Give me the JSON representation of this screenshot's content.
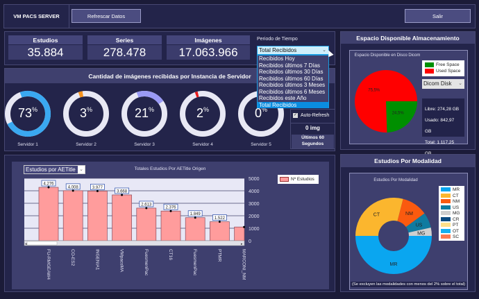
{
  "header": {
    "title": "VM PACS SERVER",
    "refresh_label": "Refrescar Datos",
    "exit_label": "Salir"
  },
  "stats": [
    {
      "label": "Estudios",
      "value": "35.884"
    },
    {
      "label": "Series",
      "value": "278.478"
    },
    {
      "label": "Imágenes",
      "value": "17.063.966"
    }
  ],
  "period": {
    "label": "Periodo de Tiempo",
    "selected": "Total Recibidos",
    "options": [
      "Recibidos Hoy",
      "Recibidos últimos 7 Días",
      "Recibidos últimos 30 Días",
      "Recibidos últimos 60 Días",
      "Recibidos últimos 3 Meses",
      "Recibidos últimos 6 Meses",
      "Recibidos este Año",
      "Total Recibidos"
    ]
  },
  "servers": {
    "title": "Cantidad de imágenes recibidas por Instancia de Servidor",
    "items": [
      {
        "name": "Servidor 1",
        "percent": 73,
        "color": "#3aa8f0"
      },
      {
        "name": "Servidor 2",
        "percent": 3,
        "color": "#f7931e"
      },
      {
        "name": "Servidor 3",
        "percent": 21,
        "color": "#9a9af5"
      },
      {
        "name": "Servidor 4",
        "percent": 2,
        "color": "#e81c1c"
      },
      {
        "name": "Servidor 5",
        "percent": 0,
        "color": "#3aa8f0"
      }
    ],
    "percent_sign": "%",
    "auto_refresh_label": "Auto-Refresh",
    "auto_refresh_checked": true,
    "recent_count": "0 img",
    "recent_label": "Últimos 60 Segundos"
  },
  "chart_data": [
    {
      "type": "bar",
      "title": "Totales Estudios Por AETitle Origen",
      "selector": "Estudios por AETitle",
      "legend": "Nº Estudios",
      "legend_position": "right",
      "categories": [
        "FU-RMGEAW4",
        "CO-ES2",
        "INGENIA1",
        "VMpacsMA",
        "FuesmenPac",
        "CT16",
        "FuesmenPac",
        "PTMR",
        "MARCONI_NM"
      ],
      "values": [
        4276,
        4008,
        3977,
        3668,
        2613,
        2376,
        1849,
        1522,
        1100
      ],
      "labels": [
        "4.276",
        "4.008",
        "3.977",
        "3.668",
        "2.613",
        "2.376",
        "1.849",
        "1.522",
        ""
      ],
      "ylim": [
        0,
        5000
      ],
      "yticks": [
        "5000",
        "4000",
        "3000",
        "2000",
        "1000",
        "0"
      ],
      "grid": true,
      "color": "#ff9c9c"
    },
    {
      "type": "pie",
      "title": "Espacio Disponible en Disco Dicom",
      "series": [
        {
          "name": "Free Space",
          "value": 24.5,
          "label": "24,5%",
          "color": "#008f00"
        },
        {
          "name": "Used Space",
          "value": 75.5,
          "label": "75,5%",
          "color": "#ff0000"
        }
      ]
    },
    {
      "type": "pie",
      "title": "Estudios Por Modalidad",
      "donut": true,
      "series": [
        {
          "name": "MR",
          "value": 50,
          "color": "#0aa6f0"
        },
        {
          "name": "CT",
          "value": 29,
          "color": "#fbb62e"
        },
        {
          "name": "NM",
          "value": 11,
          "color": "#fa5a0f"
        },
        {
          "name": "US",
          "value": 6.5,
          "color": "#0f7ba0"
        },
        {
          "name": "MG",
          "value": 3.5,
          "color": "#cfcfcf"
        },
        {
          "name": "CR",
          "value": 0,
          "color": "#0a4a80"
        },
        {
          "name": "PT",
          "value": 0,
          "color": "#ffe08a"
        },
        {
          "name": "OT",
          "value": 0,
          "color": "#14b0f0"
        },
        {
          "name": "SC",
          "value": 0,
          "color": "#fa7a50"
        }
      ],
      "note": "(Se excluyen las modalidades con menos del 2% sobre el total)"
    }
  ],
  "storage": {
    "title": "Espacio Disponible Almacenamiento",
    "disk_select": "Dicom Disk",
    "free": "Libre: 274,28 GB",
    "used": "Usado: 842,97 GB",
    "total": "Total: 1.117,25 GB"
  },
  "modality": {
    "title": "Estudios Por Modalidad"
  }
}
